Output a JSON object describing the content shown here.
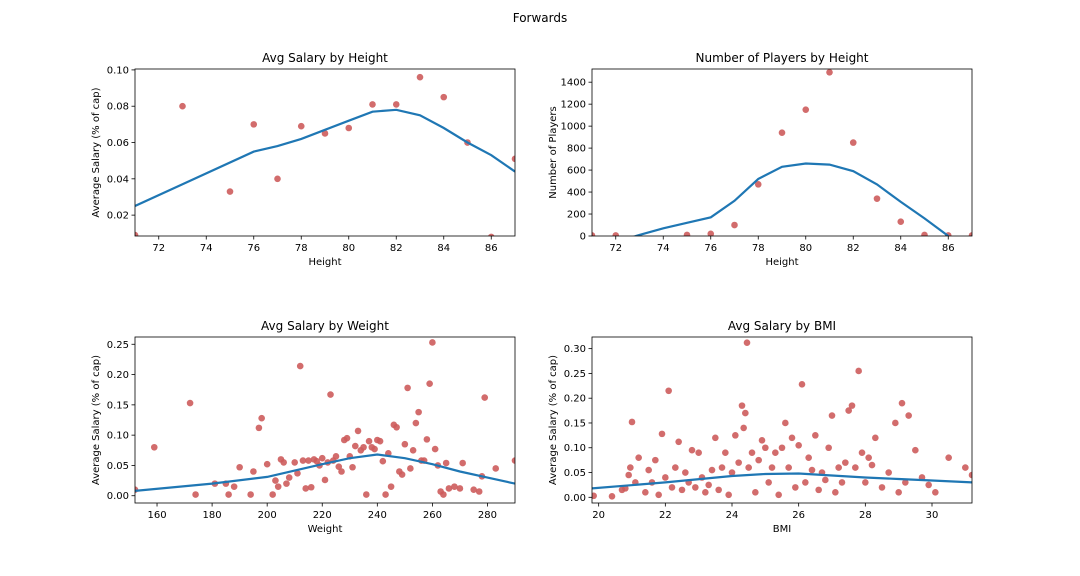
{
  "figure_title": "Forwards",
  "colors": {
    "points": "#cd5c5c",
    "line": "#1f77b4",
    "axes": "#000000"
  },
  "chart_data": [
    {
      "type": "scatter",
      "title": "Avg Salary by Height",
      "xlabel": "Height",
      "ylabel": "Average Salary (% of cap)",
      "xlim": [
        71,
        87
      ],
      "ylim": [
        0.0085,
        0.1005
      ],
      "xticks": [
        72,
        74,
        76,
        78,
        80,
        82,
        84,
        86
      ],
      "yticks": [
        0.02,
        0.04,
        0.06,
        0.08,
        0.1
      ],
      "ytick_labels": [
        "0.02",
        "0.04",
        "0.06",
        "0.08",
        "0.10"
      ],
      "points": [
        [
          71,
          0.009
        ],
        [
          73,
          0.08
        ],
        [
          75,
          0.033
        ],
        [
          76,
          0.07
        ],
        [
          77,
          0.04
        ],
        [
          78,
          0.069
        ],
        [
          79,
          0.065
        ],
        [
          80,
          0.068
        ],
        [
          81,
          0.081
        ],
        [
          82,
          0.081
        ],
        [
          83,
          0.096
        ],
        [
          84,
          0.085
        ],
        [
          85,
          0.06
        ],
        [
          86,
          0.008
        ],
        [
          87,
          0.051
        ]
      ],
      "trend": [
        [
          71,
          0.025
        ],
        [
          73,
          0.037
        ],
        [
          76,
          0.055
        ],
        [
          77,
          0.058
        ],
        [
          78,
          0.062
        ],
        [
          79,
          0.067
        ],
        [
          80,
          0.072
        ],
        [
          81,
          0.077
        ],
        [
          82,
          0.078
        ],
        [
          83,
          0.075
        ],
        [
          84,
          0.068
        ],
        [
          85,
          0.06
        ],
        [
          86,
          0.053
        ],
        [
          87,
          0.044
        ]
      ]
    },
    {
      "type": "scatter",
      "title": "Number of Players by Height",
      "xlabel": "Height",
      "ylabel": "Number of Players",
      "xlim": [
        71,
        87
      ],
      "ylim": [
        0,
        1520
      ],
      "xticks": [
        72,
        74,
        76,
        78,
        80,
        82,
        84,
        86
      ],
      "yticks": [
        0,
        200,
        400,
        600,
        800,
        1000,
        1200,
        1400
      ],
      "ytick_labels": [
        "0",
        "200",
        "400",
        "600",
        "800",
        "1000",
        "1200",
        "1400"
      ],
      "points": [
        [
          71,
          5
        ],
        [
          72,
          5
        ],
        [
          75,
          10
        ],
        [
          76,
          20
        ],
        [
          77,
          100
        ],
        [
          78,
          470
        ],
        [
          79,
          940
        ],
        [
          80,
          1150
        ],
        [
          81,
          1490
        ],
        [
          82,
          850
        ],
        [
          83,
          340
        ],
        [
          84,
          130
        ],
        [
          85,
          10
        ],
        [
          86,
          5
        ],
        [
          87,
          5
        ]
      ],
      "trend": [
        [
          72.5,
          -25
        ],
        [
          73,
          10
        ],
        [
          74,
          70
        ],
        [
          75,
          120
        ],
        [
          76,
          170
        ],
        [
          77,
          320
        ],
        [
          78,
          520
        ],
        [
          79,
          630
        ],
        [
          80,
          660
        ],
        [
          81,
          650
        ],
        [
          82,
          590
        ],
        [
          83,
          470
        ],
        [
          84,
          310
        ],
        [
          85,
          160
        ],
        [
          86,
          0
        ]
      ]
    },
    {
      "type": "scatter",
      "title": "Avg Salary by Weight",
      "xlabel": "Weight",
      "ylabel": "Average Salary (% of cap)",
      "xlim": [
        152,
        290
      ],
      "ylim": [
        -0.012,
        0.262
      ],
      "xticks": [
        160,
        180,
        200,
        220,
        240,
        260,
        280
      ],
      "yticks": [
        0,
        0.05,
        0.1,
        0.15,
        0.2,
        0.25
      ],
      "ytick_labels": [
        "0.00",
        "0.05",
        "0.10",
        "0.15",
        "0.20",
        "0.25"
      ],
      "points": [
        [
          152,
          0.01
        ],
        [
          159,
          0.08
        ],
        [
          172,
          0.153
        ],
        [
          174,
          0.002
        ],
        [
          181,
          0.02
        ],
        [
          185,
          0.02
        ],
        [
          186,
          0.002
        ],
        [
          188,
          0.015
        ],
        [
          190,
          0.047
        ],
        [
          194,
          0.002
        ],
        [
          195,
          0.04
        ],
        [
          197,
          0.112
        ],
        [
          198,
          0.128
        ],
        [
          200,
          0.052
        ],
        [
          202,
          0.002
        ],
        [
          203,
          0.025
        ],
        [
          204,
          0.015
        ],
        [
          205,
          0.06
        ],
        [
          206,
          0.055
        ],
        [
          207,
          0.02
        ],
        [
          208,
          0.03
        ],
        [
          210,
          0.055
        ],
        [
          211,
          0.037
        ],
        [
          212,
          0.214
        ],
        [
          213,
          0.058
        ],
        [
          214,
          0.012
        ],
        [
          215,
          0.058
        ],
        [
          216,
          0.014
        ],
        [
          217,
          0.06
        ],
        [
          218,
          0.057
        ],
        [
          219,
          0.05
        ],
        [
          220,
          0.062
        ],
        [
          221,
          0.026
        ],
        [
          222,
          0.055
        ],
        [
          223,
          0.167
        ],
        [
          224,
          0.058
        ],
        [
          225,
          0.065
        ],
        [
          226,
          0.048
        ],
        [
          227,
          0.04
        ],
        [
          228,
          0.092
        ],
        [
          229,
          0.095
        ],
        [
          230,
          0.065
        ],
        [
          231,
          0.047
        ],
        [
          232,
          0.082
        ],
        [
          233,
          0.107
        ],
        [
          234,
          0.075
        ],
        [
          235,
          0.08
        ],
        [
          236,
          0.002
        ],
        [
          237,
          0.09
        ],
        [
          238,
          0.08
        ],
        [
          239,
          0.077
        ],
        [
          240,
          0.092
        ],
        [
          241,
          0.09
        ],
        [
          242,
          0.057
        ],
        [
          243,
          0.002
        ],
        [
          244,
          0.07
        ],
        [
          245,
          0.015
        ],
        [
          246,
          0.117
        ],
        [
          247,
          0.113
        ],
        [
          248,
          0.04
        ],
        [
          249,
          0.035
        ],
        [
          250,
          0.085
        ],
        [
          251,
          0.178
        ],
        [
          252,
          0.045
        ],
        [
          253,
          0.075
        ],
        [
          254,
          0.12
        ],
        [
          255,
          0.138
        ],
        [
          256,
          0.058
        ],
        [
          257,
          0.058
        ],
        [
          258,
          0.093
        ],
        [
          259,
          0.185
        ],
        [
          260,
          0.253
        ],
        [
          261,
          0.077
        ],
        [
          262,
          0.05
        ],
        [
          263,
          0.007
        ],
        [
          264,
          0.002
        ],
        [
          265,
          0.054
        ],
        [
          266,
          0.012
        ],
        [
          268,
          0.015
        ],
        [
          270,
          0.012
        ],
        [
          271,
          0.054
        ],
        [
          275,
          0.01
        ],
        [
          277,
          0.007
        ],
        [
          278,
          0.032
        ],
        [
          279,
          0.162
        ],
        [
          283,
          0.045
        ],
        [
          290,
          0.058
        ]
      ],
      "trend": [
        [
          152,
          0.008
        ],
        [
          180,
          0.02
        ],
        [
          200,
          0.031
        ],
        [
          220,
          0.052
        ],
        [
          230,
          0.062
        ],
        [
          240,
          0.068
        ],
        [
          250,
          0.062
        ],
        [
          260,
          0.052
        ],
        [
          270,
          0.04
        ],
        [
          280,
          0.03
        ],
        [
          290,
          0.02
        ]
      ]
    },
    {
      "type": "scatter",
      "title": "Avg Salary by BMI",
      "xlabel": "BMI",
      "ylabel": "Average Salary (% of cap)",
      "xlim": [
        19.8,
        31.2
      ],
      "ylim": [
        -0.0115,
        0.3235
      ],
      "xticks": [
        20,
        22,
        24,
        26,
        28,
        30
      ],
      "yticks": [
        0,
        0.05,
        0.1,
        0.15,
        0.2,
        0.25,
        0.3
      ],
      "ytick_labels": [
        "0.00",
        "0.05",
        "0.10",
        "0.15",
        "0.20",
        "0.25",
        "0.30"
      ],
      "points": [
        [
          19.85,
          0.003
        ],
        [
          20.4,
          0.002
        ],
        [
          20.7,
          0.015
        ],
        [
          20.8,
          0.018
        ],
        [
          20.9,
          0.045
        ],
        [
          20.95,
          0.06
        ],
        [
          21.0,
          0.152
        ],
        [
          21.1,
          0.03
        ],
        [
          21.2,
          0.08
        ],
        [
          21.4,
          0.01
        ],
        [
          21.5,
          0.055
        ],
        [
          21.6,
          0.03
        ],
        [
          21.7,
          0.075
        ],
        [
          21.8,
          0.005
        ],
        [
          21.9,
          0.128
        ],
        [
          22.0,
          0.04
        ],
        [
          22.1,
          0.215
        ],
        [
          22.2,
          0.02
        ],
        [
          22.3,
          0.06
        ],
        [
          22.4,
          0.112
        ],
        [
          22.5,
          0.015
        ],
        [
          22.6,
          0.05
        ],
        [
          22.7,
          0.03
        ],
        [
          22.8,
          0.095
        ],
        [
          22.9,
          0.02
        ],
        [
          23.0,
          0.09
        ],
        [
          23.1,
          0.04
        ],
        [
          23.2,
          0.01
        ],
        [
          23.3,
          0.025
        ],
        [
          23.4,
          0.055
        ],
        [
          23.5,
          0.12
        ],
        [
          23.6,
          0.015
        ],
        [
          23.7,
          0.06
        ],
        [
          23.8,
          0.09
        ],
        [
          23.9,
          0.005
        ],
        [
          24.0,
          0.05
        ],
        [
          24.1,
          0.125
        ],
        [
          24.2,
          0.07
        ],
        [
          24.3,
          0.185
        ],
        [
          24.35,
          0.14
        ],
        [
          24.4,
          0.17
        ],
        [
          24.45,
          0.312
        ],
        [
          24.5,
          0.06
        ],
        [
          24.6,
          0.09
        ],
        [
          24.7,
          0.01
        ],
        [
          24.8,
          0.075
        ],
        [
          24.9,
          0.115
        ],
        [
          25.0,
          0.1
        ],
        [
          25.1,
          0.03
        ],
        [
          25.2,
          0.06
        ],
        [
          25.3,
          0.09
        ],
        [
          25.4,
          0.005
        ],
        [
          25.5,
          0.1
        ],
        [
          25.6,
          0.15
        ],
        [
          25.7,
          0.06
        ],
        [
          25.8,
          0.12
        ],
        [
          25.9,
          0.02
        ],
        [
          26.0,
          0.105
        ],
        [
          26.1,
          0.228
        ],
        [
          26.2,
          0.03
        ],
        [
          26.3,
          0.08
        ],
        [
          26.4,
          0.055
        ],
        [
          26.5,
          0.125
        ],
        [
          26.6,
          0.015
        ],
        [
          26.7,
          0.05
        ],
        [
          26.8,
          0.035
        ],
        [
          26.9,
          0.1
        ],
        [
          27.0,
          0.165
        ],
        [
          27.1,
          0.01
        ],
        [
          27.2,
          0.06
        ],
        [
          27.3,
          0.03
        ],
        [
          27.4,
          0.07
        ],
        [
          27.5,
          0.175
        ],
        [
          27.6,
          0.185
        ],
        [
          27.7,
          0.06
        ],
        [
          27.8,
          0.255
        ],
        [
          27.9,
          0.09
        ],
        [
          28.0,
          0.03
        ],
        [
          28.1,
          0.08
        ],
        [
          28.2,
          0.065
        ],
        [
          28.3,
          0.12
        ],
        [
          28.5,
          0.02
        ],
        [
          28.7,
          0.05
        ],
        [
          28.9,
          0.15
        ],
        [
          29.0,
          0.01
        ],
        [
          29.1,
          0.19
        ],
        [
          29.2,
          0.03
        ],
        [
          29.3,
          0.165
        ],
        [
          29.5,
          0.095
        ],
        [
          29.7,
          0.04
        ],
        [
          29.9,
          0.025
        ],
        [
          30.1,
          0.01
        ],
        [
          30.5,
          0.08
        ],
        [
          31.0,
          0.06
        ],
        [
          31.2,
          0.045
        ]
      ],
      "trend": [
        [
          19.8,
          0.018
        ],
        [
          22,
          0.03
        ],
        [
          24,
          0.043
        ],
        [
          25,
          0.047
        ],
        [
          26,
          0.048
        ],
        [
          27,
          0.044
        ],
        [
          28,
          0.04
        ],
        [
          29,
          0.037
        ],
        [
          30,
          0.034
        ],
        [
          31.2,
          0.03
        ]
      ]
    }
  ]
}
